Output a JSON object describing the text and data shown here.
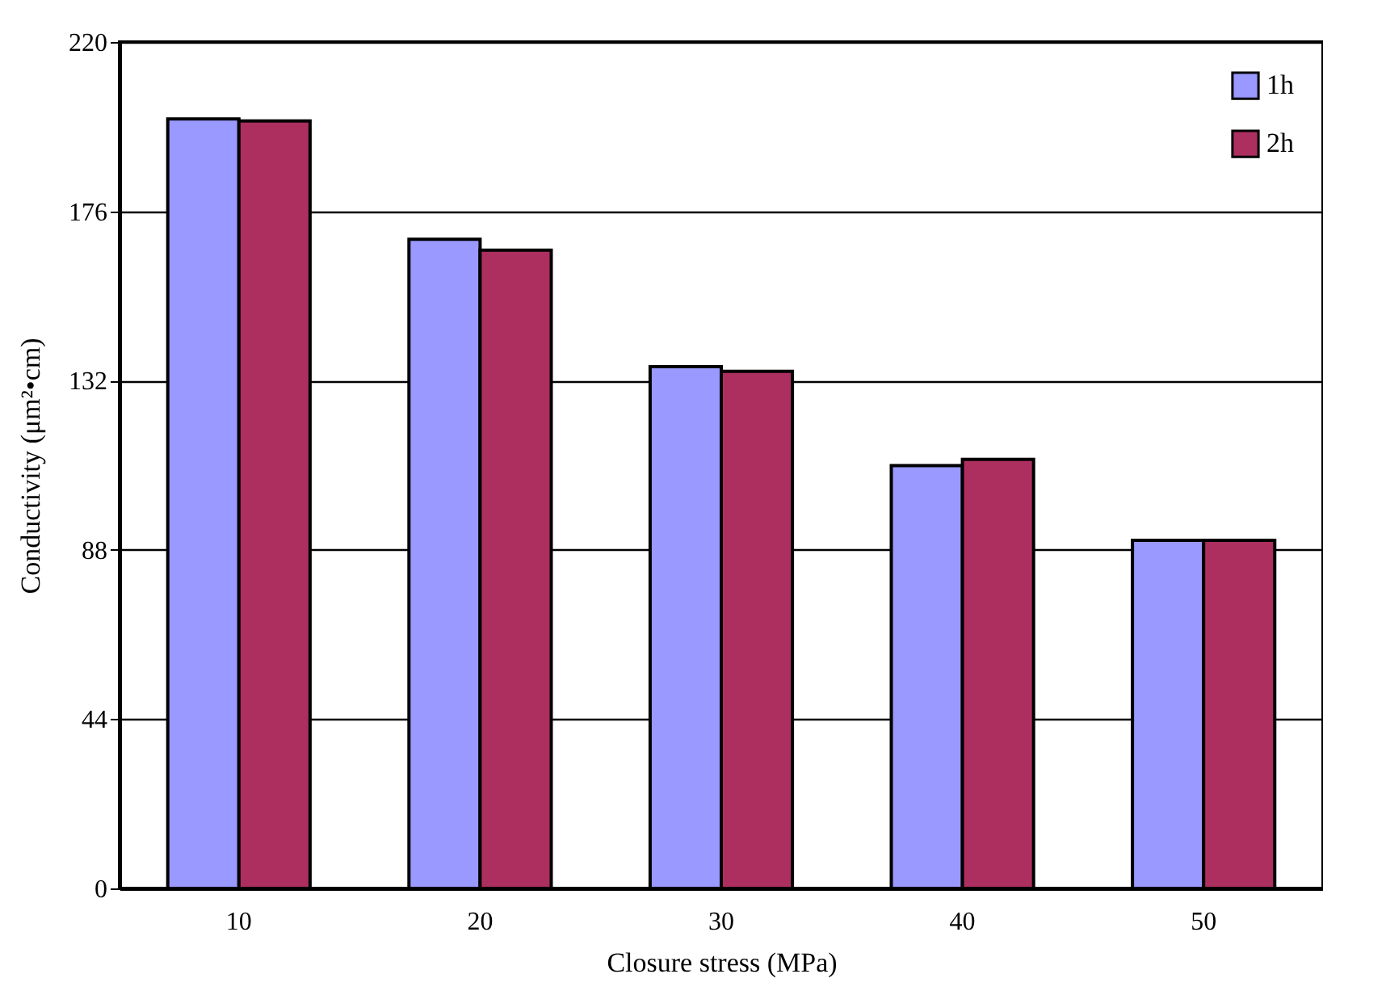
{
  "chart_data": {
    "type": "bar",
    "xlabel": "Closure stress (MPa)",
    "ylabel": "Conductivity (μm²•cm)",
    "categories": [
      "10",
      "20",
      "30",
      "40",
      "50"
    ],
    "series": [
      {
        "name": "1h",
        "color": "#9999ff",
        "values": [
          200,
          168.7,
          135.6,
          109.9,
          90.5
        ]
      },
      {
        "name": "2h",
        "color": "#ad2f60",
        "values": [
          199.5,
          165.9,
          134.4,
          111.5,
          90.5
        ]
      }
    ],
    "ylim": [
      0,
      220
    ],
    "yticks": [
      0,
      44,
      88,
      132,
      176,
      220
    ],
    "grid": "y",
    "legend": "top right"
  }
}
